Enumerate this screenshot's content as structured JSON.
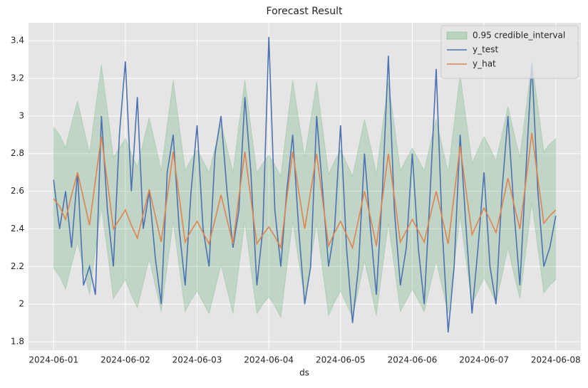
{
  "chart_data": {
    "type": "line",
    "title": "Forecast Result",
    "x_label": "ds",
    "x": [
      0,
      2,
      4,
      6,
      8,
      10,
      12,
      14,
      16,
      18,
      20,
      22,
      24,
      26,
      28,
      30,
      32,
      34,
      36,
      38,
      40,
      42,
      44,
      46,
      48,
      50,
      52,
      54,
      56,
      58,
      60,
      62,
      64,
      66,
      68,
      70,
      72,
      74,
      76,
      78,
      80,
      82,
      84,
      86,
      88,
      90,
      92,
      94,
      96,
      98,
      100,
      102,
      104,
      106,
      108,
      110,
      112,
      114,
      116,
      118,
      120,
      122,
      124,
      126,
      128,
      130,
      132,
      134,
      136,
      138,
      140,
      142,
      144,
      146,
      148,
      150,
      152,
      154,
      156,
      158,
      160,
      162,
      164,
      166,
      168
    ],
    "series": [
      {
        "name": "0.95 credible_interval",
        "color": "#55a868",
        "lower": [
          2.19,
          2.15,
          2.08,
          2.21,
          2.33,
          2.19,
          2.05,
          2.29,
          2.52,
          2.28,
          2.03,
          2.08,
          2.13,
          2.05,
          1.98,
          2.11,
          2.24,
          2.1,
          1.96,
          2.2,
          2.44,
          2.2,
          1.96,
          2.02,
          2.07,
          2.01,
          1.95,
          2.08,
          2.21,
          2.08,
          1.95,
          2.2,
          2.44,
          2.19,
          1.95,
          2.0,
          2.04,
          1.99,
          1.93,
          2.19,
          2.44,
          2.23,
          2.03,
          2.23,
          2.43,
          2.18,
          1.94,
          2.01,
          2.07,
          2.0,
          1.93,
          2.08,
          2.23,
          2.09,
          1.94,
          2.19,
          2.43,
          2.2,
          1.96,
          2.02,
          2.08,
          2.02,
          1.96,
          2.1,
          2.23,
          2.09,
          1.95,
          2.21,
          2.47,
          2.23,
          2.0,
          2.07,
          2.14,
          2.08,
          2.01,
          2.15,
          2.3,
          2.16,
          2.03,
          2.28,
          2.54,
          2.3,
          2.06,
          2.1,
          2.13
        ],
        "upper": [
          2.94,
          2.9,
          2.83,
          2.96,
          3.08,
          2.94,
          2.8,
          3.04,
          3.27,
          3.03,
          2.78,
          2.83,
          2.88,
          2.8,
          2.73,
          2.86,
          2.99,
          2.85,
          2.71,
          2.95,
          3.19,
          2.95,
          2.71,
          2.77,
          2.82,
          2.76,
          2.7,
          2.83,
          2.96,
          2.83,
          2.7,
          2.95,
          3.19,
          2.94,
          2.7,
          2.75,
          2.79,
          2.74,
          2.68,
          2.94,
          3.19,
          2.98,
          2.78,
          2.98,
          3.18,
          2.93,
          2.69,
          2.76,
          2.82,
          2.75,
          2.68,
          2.83,
          2.98,
          2.84,
          2.69,
          2.94,
          3.18,
          2.95,
          2.71,
          2.77,
          2.83,
          2.77,
          2.71,
          2.85,
          2.98,
          2.84,
          2.7,
          2.96,
          3.22,
          2.98,
          2.75,
          2.82,
          2.89,
          2.83,
          2.76,
          2.9,
          3.05,
          2.91,
          2.78,
          3.03,
          3.29,
          3.05,
          2.81,
          2.85,
          2.88
        ]
      },
      {
        "name": "y_test",
        "color": "#4c72b0",
        "values": [
          2.66,
          2.4,
          2.6,
          2.3,
          2.7,
          2.1,
          2.2,
          2.05,
          3.0,
          2.5,
          2.2,
          2.9,
          3.29,
          2.6,
          3.1,
          2.4,
          2.6,
          2.25,
          2.0,
          2.7,
          2.9,
          2.4,
          2.1,
          2.6,
          2.95,
          2.4,
          2.2,
          2.8,
          3.0,
          2.6,
          2.3,
          2.5,
          3.1,
          2.7,
          2.1,
          2.4,
          3.42,
          2.5,
          2.2,
          2.6,
          2.9,
          2.4,
          2.0,
          2.2,
          3.0,
          2.6,
          2.2,
          2.4,
          2.95,
          2.3,
          1.9,
          2.2,
          2.8,
          2.4,
          2.05,
          2.6,
          3.32,
          2.5,
          2.1,
          2.3,
          2.8,
          2.3,
          2.0,
          2.6,
          3.25,
          2.4,
          1.85,
          2.2,
          2.9,
          2.4,
          1.95,
          2.3,
          2.7,
          2.2,
          2.0,
          2.6,
          3.0,
          2.5,
          2.1,
          2.7,
          3.28,
          2.6,
          2.2,
          2.3,
          2.47
        ]
      },
      {
        "name": "y_hat",
        "color": "#dd8452",
        "values": [
          2.56,
          2.52,
          2.45,
          2.58,
          2.7,
          2.56,
          2.42,
          2.66,
          2.89,
          2.65,
          2.4,
          2.45,
          2.5,
          2.42,
          2.35,
          2.48,
          2.61,
          2.47,
          2.33,
          2.57,
          2.81,
          2.57,
          2.33,
          2.39,
          2.44,
          2.38,
          2.32,
          2.45,
          2.58,
          2.45,
          2.32,
          2.57,
          2.81,
          2.56,
          2.32,
          2.37,
          2.41,
          2.36,
          2.3,
          2.56,
          2.81,
          2.6,
          2.4,
          2.6,
          2.8,
          2.55,
          2.31,
          2.38,
          2.44,
          2.37,
          2.3,
          2.45,
          2.6,
          2.46,
          2.31,
          2.56,
          2.8,
          2.57,
          2.33,
          2.39,
          2.45,
          2.39,
          2.33,
          2.47,
          2.6,
          2.46,
          2.32,
          2.58,
          2.84,
          2.6,
          2.37,
          2.44,
          2.51,
          2.45,
          2.38,
          2.52,
          2.67,
          2.53,
          2.4,
          2.65,
          2.91,
          2.67,
          2.43,
          2.47,
          2.5
        ]
      }
    ],
    "xlim": [
      -8.4,
      176.4
    ],
    "xticks": [
      {
        "value": 0,
        "label": "2024-06-01"
      },
      {
        "value": 24,
        "label": "2024-06-02"
      },
      {
        "value": 48,
        "label": "2024-06-03"
      },
      {
        "value": 72,
        "label": "2024-06-04"
      },
      {
        "value": 96,
        "label": "2024-06-05"
      },
      {
        "value": 120,
        "label": "2024-06-06"
      },
      {
        "value": 144,
        "label": "2024-06-07"
      },
      {
        "value": 168,
        "label": "2024-06-08"
      }
    ],
    "ylim": [
      1.755,
      3.495
    ],
    "yticks": [
      1.8,
      2.0,
      2.2,
      2.4,
      2.6,
      2.8,
      3.0,
      3.2,
      3.4
    ],
    "grid": true,
    "legend": "upper right"
  }
}
